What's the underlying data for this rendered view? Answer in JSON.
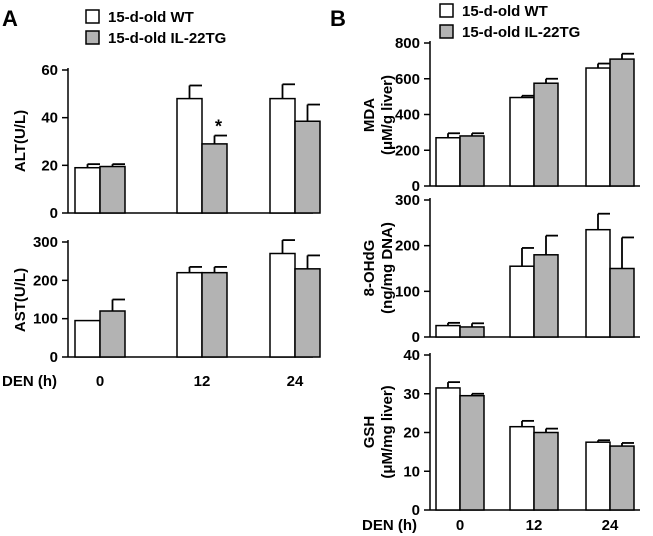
{
  "figure": {
    "panel_labels": [
      "A",
      "B"
    ],
    "x_axis_prefix": "DEN (h)"
  },
  "legend": {
    "items": [
      {
        "label": "15-d-old WT",
        "color": "#ffffff"
      },
      {
        "label": "15-d-old IL-22TG",
        "color": "#b3b3b3"
      }
    ]
  },
  "chart_data": [
    {
      "type": "bar",
      "id": "alt",
      "panel": "A",
      "ylabel": "ALT(U/L)",
      "ylim": [
        0,
        60
      ],
      "yticks": [
        0,
        20,
        40,
        60
      ],
      "categories": [
        "0",
        "12",
        "24"
      ],
      "series": [
        {
          "name": "15-d-old WT",
          "values": [
            19,
            48,
            48
          ],
          "errors": [
            1.5,
            5.5,
            6
          ]
        },
        {
          "name": "15-d-old IL-22TG",
          "values": [
            19.5,
            29,
            38.5
          ],
          "errors": [
            1,
            3.5,
            7
          ]
        }
      ],
      "annotations": [
        {
          "category": "12",
          "series": 1,
          "text": "*"
        }
      ]
    },
    {
      "type": "bar",
      "id": "ast",
      "panel": "A",
      "ylabel": "AST(U/L)",
      "ylim": [
        0,
        300
      ],
      "yticks": [
        0,
        100,
        200,
        300
      ],
      "categories": [
        "0",
        "12",
        "24"
      ],
      "series": [
        {
          "name": "15-d-old WT",
          "values": [
            95,
            220,
            270
          ],
          "errors": [
            0,
            15,
            35
          ]
        },
        {
          "name": "15-d-old IL-22TG",
          "values": [
            120,
            220,
            230
          ],
          "errors": [
            30,
            15,
            35
          ]
        }
      ]
    },
    {
      "type": "bar",
      "id": "mda",
      "panel": "B",
      "ylabel": [
        "MDA",
        "(μM/g liver)"
      ],
      "ylim": [
        0,
        800
      ],
      "yticks": [
        0,
        200,
        400,
        600,
        800
      ],
      "categories": [
        "0",
        "12",
        "24"
      ],
      "series": [
        {
          "name": "15-d-old WT",
          "values": [
            270,
            495,
            660
          ],
          "errors": [
            25,
            10,
            25
          ]
        },
        {
          "name": "15-d-old IL-22TG",
          "values": [
            280,
            575,
            710
          ],
          "errors": [
            15,
            25,
            30
          ]
        }
      ]
    },
    {
      "type": "bar",
      "id": "ohdg",
      "panel": "B",
      "ylabel": [
        "8-OHdG",
        "(ng/mg DNA)"
      ],
      "ylim": [
        0,
        300
      ],
      "yticks": [
        0,
        100,
        200,
        300
      ],
      "categories": [
        "0",
        "12",
        "24"
      ],
      "series": [
        {
          "name": "15-d-old WT",
          "values": [
            25,
            155,
            235
          ],
          "errors": [
            6,
            40,
            35
          ]
        },
        {
          "name": "15-d-old IL-22TG",
          "values": [
            22,
            180,
            150
          ],
          "errors": [
            8,
            42,
            68
          ]
        }
      ]
    },
    {
      "type": "bar",
      "id": "gsh",
      "panel": "B",
      "ylabel": [
        "GSH",
        "(μM/mg liver)"
      ],
      "ylim": [
        0,
        40
      ],
      "yticks": [
        0,
        10,
        20,
        30,
        40
      ],
      "categories": [
        "0",
        "12",
        "24"
      ],
      "series": [
        {
          "name": "15-d-old WT",
          "values": [
            31.5,
            21.5,
            17.5
          ],
          "errors": [
            1.5,
            1.5,
            0.5
          ]
        },
        {
          "name": "15-d-old IL-22TG",
          "values": [
            29.5,
            20,
            16.5
          ],
          "errors": [
            0.5,
            1,
            0.8
          ]
        }
      ]
    }
  ]
}
